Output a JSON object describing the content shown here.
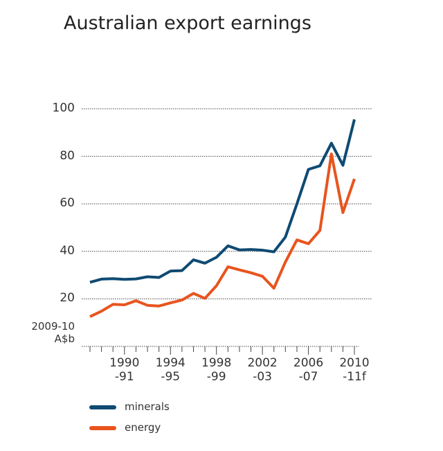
{
  "chart_data": {
    "type": "line",
    "title": "Australian export earnings",
    "y_label": "2009-10\nA$b",
    "categories": [
      null,
      null,
      null,
      "1990\n-91",
      null,
      null,
      null,
      "1994\n-95",
      null,
      null,
      null,
      "1998\n-99",
      null,
      null,
      null,
      "2002\n-03",
      null,
      null,
      null,
      "2006\n-07",
      null,
      null,
      null,
      "2010\n-11f"
    ],
    "series": [
      {
        "name": "minerals",
        "color": "#0f4a73",
        "values": [
          27,
          28.3,
          28.5,
          28.2,
          28.4,
          29.3,
          29,
          31.7,
          31.9,
          36.4,
          35,
          37.5,
          42.3,
          40.6,
          40.8,
          40.5,
          39.8,
          46,
          60,
          74.5,
          76,
          85.5,
          76.2,
          95.5
        ]
      },
      {
        "name": "energy",
        "color": "#e8541e",
        "values": [
          12.5,
          14.8,
          17.7,
          17.5,
          19.2,
          17.3,
          17,
          18.3,
          19.5,
          22.3,
          20.2,
          25.5,
          33.5,
          32.2,
          31,
          29.5,
          24.5,
          35.5,
          44.8,
          43.2,
          48.8,
          81,
          56.3,
          70.5
        ]
      }
    ],
    "ylim": [
      0,
      100
    ],
    "yticks": [
      20,
      40,
      60,
      80,
      100
    ],
    "grid": true
  }
}
